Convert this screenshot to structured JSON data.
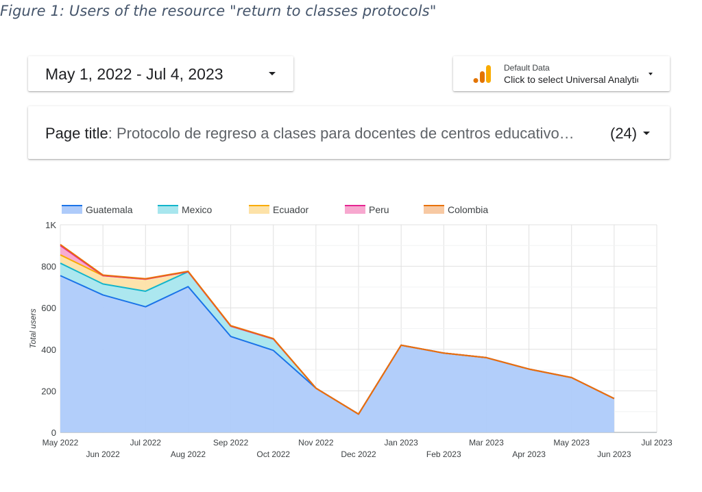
{
  "caption": "Figure 1: Users of the resource \"return to classes protocols\"",
  "date_range": {
    "label": "May 1, 2022 - Jul 4, 2023"
  },
  "data_source": {
    "title": "Default Data",
    "subtitle": "Click to select Universal Analytics"
  },
  "filter": {
    "label": "Page title",
    "value": ": Protocolo de regreso a clases para docentes de centros educativo…",
    "count": "(24)"
  },
  "colors": {
    "Guatemala": {
      "line": "#1a73e8",
      "fill": "#aecbfa"
    },
    "Mexico": {
      "line": "#12b5cb",
      "fill": "#a8e6ee"
    },
    "Ecuador": {
      "line": "#f9ab00",
      "fill": "#fde2a8"
    },
    "Peru": {
      "line": "#e52592",
      "fill": "#f7a8cf"
    },
    "Colombia": {
      "line": "#e8710a",
      "fill": "#f7c9a3"
    }
  },
  "chart_data": {
    "type": "area",
    "stacked": true,
    "x": [
      "May 2022",
      "Jun 2022",
      "Jul 2022",
      "Aug 2022",
      "Sep 2022",
      "Oct 2022",
      "Nov 2022",
      "Dec 2022",
      "Jan 2023",
      "Feb 2023",
      "Mar 2023",
      "Apr 2023",
      "May 2023",
      "Jun 2023"
    ],
    "x_ticks": [
      "May 2022",
      "Jun 2022",
      "Jul 2022",
      "Aug 2022",
      "Sep 2022",
      "Oct 2022",
      "Nov 2022",
      "Dec 2022",
      "Jan 2023",
      "Feb 2023",
      "Mar 2023",
      "Apr 2023",
      "May 2023",
      "Jun 2023",
      "Jul 2023"
    ],
    "series": [
      {
        "name": "Guatemala",
        "values": [
          755,
          662,
          605,
          702,
          462,
          395,
          213,
          88,
          420,
          382,
          360,
          305,
          264,
          163
        ]
      },
      {
        "name": "Mexico",
        "values": [
          60,
          53,
          75,
          72,
          50,
          55,
          0,
          0,
          0,
          0,
          0,
          0,
          0,
          0
        ]
      },
      {
        "name": "Ecuador",
        "values": [
          40,
          40,
          58,
          0,
          0,
          0,
          0,
          0,
          0,
          0,
          0,
          0,
          0,
          0
        ]
      },
      {
        "name": "Peru",
        "values": [
          45,
          0,
          0,
          0,
          0,
          0,
          0,
          0,
          0,
          0,
          0,
          0,
          0,
          0
        ]
      },
      {
        "name": "Colombia",
        "values": [
          5,
          3,
          2,
          2,
          2,
          2,
          0,
          0,
          0,
          0,
          0,
          0,
          0,
          0
        ]
      }
    ],
    "ylabel": "Total users",
    "ylim": [
      0,
      1000
    ],
    "yticks": [
      0,
      200,
      400,
      600,
      800,
      1000
    ],
    "ytick_labels": [
      "0",
      "200",
      "400",
      "600",
      "800",
      "1K"
    ],
    "grid": true,
    "legend": "top-left"
  }
}
